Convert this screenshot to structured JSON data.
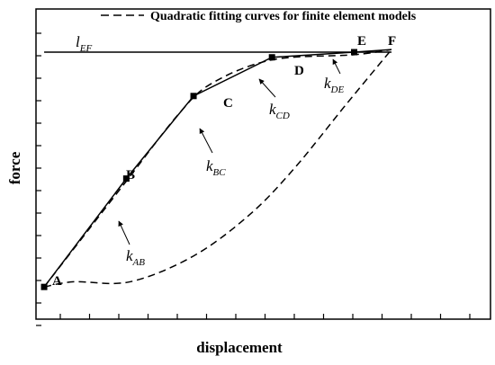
{
  "chart_data": {
    "type": "line",
    "xlabel": "displacement",
    "ylabel": "force",
    "legend": {
      "placement": "top",
      "entries": [
        {
          "label": "Quadratic fitting curves for finite element models",
          "style": "dashed"
        }
      ]
    },
    "grid": false,
    "x_ticks_labeled": false,
    "y_ticks_labeled": false,
    "series": [
      {
        "style": "solid",
        "points": [
          {
            "label": "A",
            "x": 0.07,
            "y": 0.09
          },
          {
            "label": "B",
            "x": 0.29,
            "y": 0.51
          },
          {
            "label": "C",
            "x": 0.47,
            "y": 0.83
          },
          {
            "label": "D",
            "x": 0.68,
            "y": 0.98
          },
          {
            "label": "E",
            "x": 0.9,
            "y": 1.0
          },
          {
            "label": "F",
            "x": 1.0,
            "y": 1.01
          }
        ]
      },
      {
        "style": "dashed",
        "role": "quadratic fit",
        "upper_branch": [
          [
            0.07,
            0.09
          ],
          [
            0.29,
            0.5
          ],
          [
            0.43,
            0.76
          ],
          [
            0.52,
            0.88
          ],
          [
            0.68,
            0.97
          ],
          [
            0.9,
            0.99
          ],
          [
            1.0,
            1.01
          ]
        ],
        "lower_branch": [
          [
            0.07,
            0.09
          ],
          [
            0.15,
            0.11
          ],
          [
            0.3,
            0.11
          ],
          [
            0.47,
            0.21
          ],
          [
            0.62,
            0.37
          ],
          [
            0.74,
            0.55
          ],
          [
            0.88,
            0.8
          ],
          [
            1.0,
            1.01
          ]
        ]
      }
    ],
    "reference_line": {
      "label": "l",
      "subscript": "EF",
      "y": 1.0,
      "x_range": [
        0.07,
        1.0
      ]
    },
    "slope_annotations": [
      {
        "label": "k",
        "subscript": "AB"
      },
      {
        "label": "k",
        "subscript": "BC"
      },
      {
        "label": "k",
        "subscript": "CD"
      },
      {
        "label": "k",
        "subscript": "DE"
      }
    ]
  }
}
